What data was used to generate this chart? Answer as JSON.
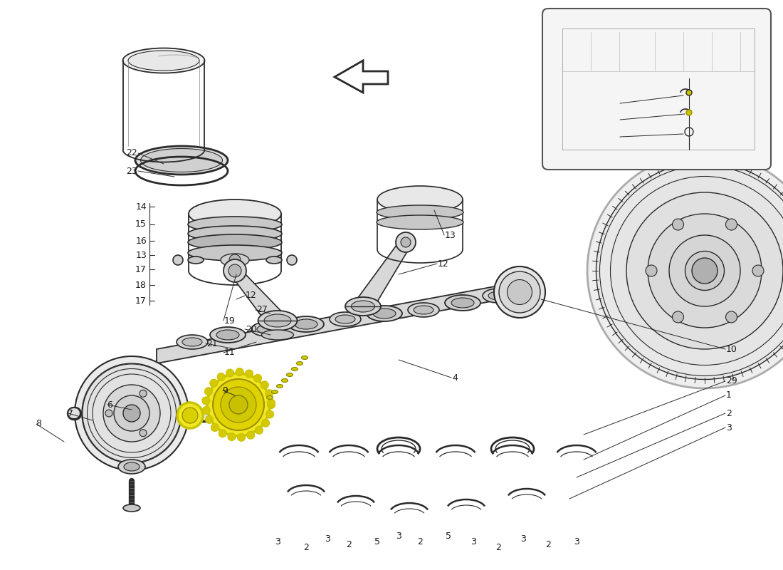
{
  "bg_color": "#ffffff",
  "lc": "#2a2a2a",
  "lg": "#aaaaaa",
  "vlg": "#e0e0e0",
  "yg": "#c8c400",
  "fs": 9,
  "arrow_color": "#333333",
  "wm_color": "#d5dce8"
}
